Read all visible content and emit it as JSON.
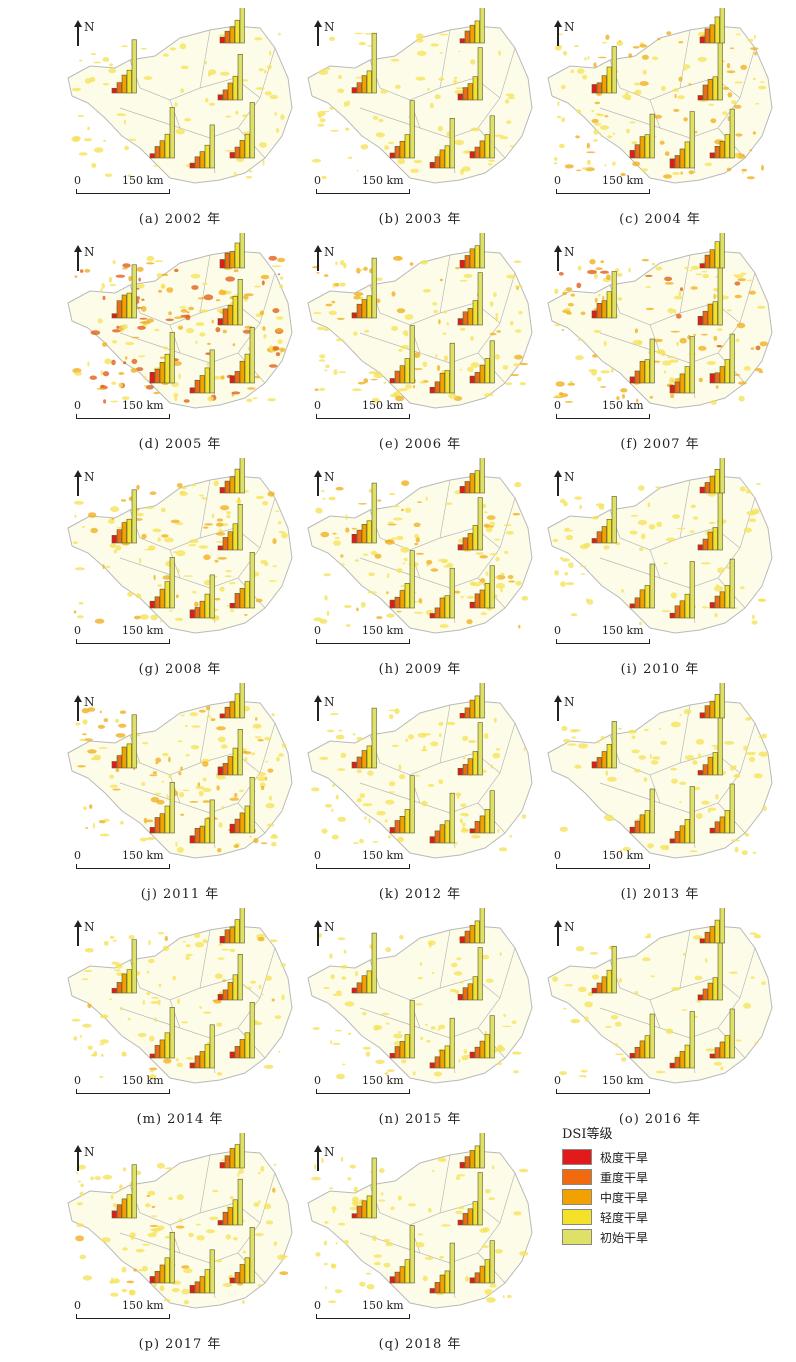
{
  "north_label": "N",
  "scale": {
    "zero": "0",
    "label": "150 km"
  },
  "legend": {
    "title": "DSI等级",
    "items": [
      {
        "label": "极度干旱",
        "color": "#e31a1c"
      },
      {
        "label": "重度干旱",
        "color": "#f06a10"
      },
      {
        "label": "中度干旱",
        "color": "#f1a100"
      },
      {
        "label": "轻度干旱",
        "color": "#f3e12a"
      },
      {
        "label": "初始干旱",
        "color": "#dfe068"
      }
    ]
  },
  "colors": {
    "map_fill": "#fdfce8",
    "boundary": "#b9b9b9",
    "drought_light": "#f5e25a",
    "drought_mid": "#f0b020",
    "drought_heavy": "#e0601a",
    "bar_stroke": "#5a5a2a"
  },
  "panels": [
    {
      "caption": "(a) 2002 年",
      "intensity": 0.25
    },
    {
      "caption": "(b) 2003 年",
      "intensity": 0.3
    },
    {
      "caption": "(c) 2004 年",
      "intensity": 0.7
    },
    {
      "caption": "(d) 2005 年",
      "intensity": 0.95
    },
    {
      "caption": "(e) 2006 年",
      "intensity": 0.55
    },
    {
      "caption": "(f) 2007 年",
      "intensity": 0.75
    },
    {
      "caption": "(g) 2008 年",
      "intensity": 0.6
    },
    {
      "caption": "(h) 2009 年",
      "intensity": 0.6
    },
    {
      "caption": "(i) 2010 年",
      "intensity": 0.3
    },
    {
      "caption": "(j) 2011 年",
      "intensity": 0.7
    },
    {
      "caption": "(k) 2012 年",
      "intensity": 0.35
    },
    {
      "caption": "(l) 2013 年",
      "intensity": 0.3
    },
    {
      "caption": "(m) 2014 年",
      "intensity": 0.45
    },
    {
      "caption": "(n) 2015 年",
      "intensity": 0.3
    },
    {
      "caption": "(o) 2016 年",
      "intensity": 0.15
    },
    {
      "caption": "(p) 2017 年",
      "intensity": 0.45
    },
    {
      "caption": "(q) 2018 年",
      "intensity": 0.3
    }
  ]
}
